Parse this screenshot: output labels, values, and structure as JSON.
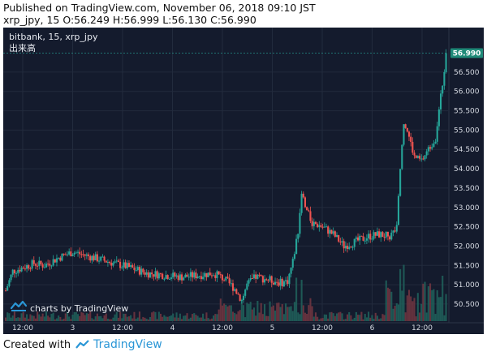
{
  "header": {
    "published": "Published on TradingView.com, November 06, 2018 09:10 JST",
    "symbol_line": "xrp_jpy, 15 O:56.249 H:56.999 L:56.130 C:56.990"
  },
  "legend": {
    "series_label": "bitbank, 15, xrp_jpy",
    "volume_label": "出来高"
  },
  "watermark": "charts by TradingView",
  "footer": {
    "created_with": "Created with",
    "brand": "TradingView"
  },
  "colors": {
    "background": "#141b2d",
    "up": "#26a69a",
    "down": "#ef5350",
    "grid": "#222b3d",
    "axis_text": "#d6dae2",
    "price_tag": "#1f8a78"
  },
  "chart_data": {
    "type": "candlestick",
    "series": "xrp_jpy (bitbank, 15)",
    "last_price": "56.990",
    "ylim": [
      50.1,
      57.4
    ],
    "y_ticks": [
      "56.500",
      "56.000",
      "55.500",
      "55.000",
      "54.500",
      "54.000",
      "53.500",
      "53.000",
      "52.500",
      "52.000",
      "51.500",
      "51.000",
      "50.500"
    ],
    "x_ticks": [
      "12:00",
      "3",
      "12:00",
      "4",
      "12:00",
      "5",
      "12:00",
      "6",
      "12:00"
    ],
    "profile": [
      [
        0,
        50.85
      ],
      [
        4,
        51.35
      ],
      [
        10,
        51.45
      ],
      [
        16,
        51.55
      ],
      [
        22,
        51.5
      ],
      [
        30,
        51.7
      ],
      [
        38,
        51.85
      ],
      [
        46,
        51.75
      ],
      [
        54,
        51.65
      ],
      [
        62,
        51.55
      ],
      [
        70,
        51.45
      ],
      [
        80,
        51.3
      ],
      [
        90,
        51.25
      ],
      [
        100,
        51.2
      ],
      [
        110,
        51.25
      ],
      [
        118,
        51.3
      ],
      [
        124,
        51.15
      ],
      [
        130,
        50.9
      ],
      [
        134,
        50.6
      ],
      [
        137,
        51.0
      ],
      [
        142,
        51.2
      ],
      [
        148,
        51.15
      ],
      [
        156,
        51.05
      ],
      [
        160,
        51.1
      ],
      [
        163,
        51.6
      ],
      [
        166,
        52.4
      ],
      [
        168,
        53.4
      ],
      [
        170,
        53.0
      ],
      [
        174,
        52.6
      ],
      [
        180,
        52.5
      ],
      [
        186,
        52.3
      ],
      [
        192,
        52.0
      ],
      [
        198,
        52.1
      ],
      [
        206,
        52.25
      ],
      [
        212,
        52.3
      ],
      [
        218,
        52.25
      ],
      [
        222,
        52.45
      ],
      [
        224,
        54.0
      ],
      [
        226,
        55.2
      ],
      [
        228,
        55.0
      ],
      [
        232,
        54.3
      ],
      [
        236,
        54.2
      ],
      [
        240,
        54.5
      ],
      [
        244,
        54.8
      ],
      [
        246,
        55.5
      ],
      [
        248,
        56.2
      ],
      [
        250,
        56.99
      ]
    ]
  }
}
